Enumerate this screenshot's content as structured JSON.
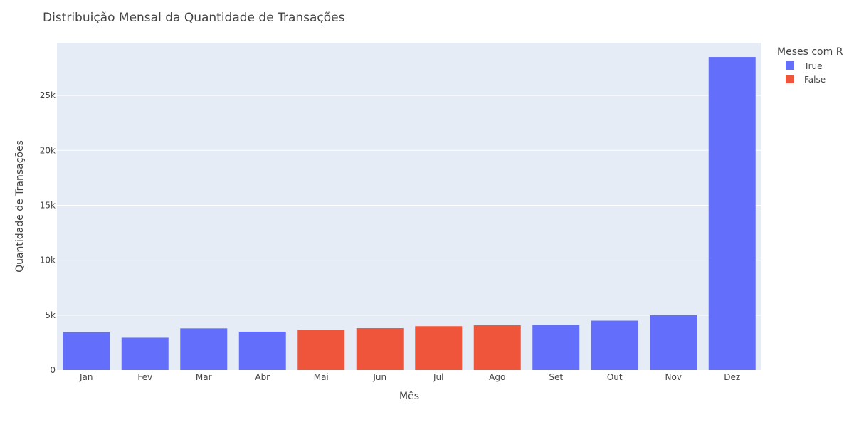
{
  "chart_data": {
    "type": "bar",
    "title": "Distribuição Mensal da Quantidade de Transações",
    "xlabel": "Mês",
    "ylabel": "Quantidade de Transações",
    "ylim": [
      0,
      29800
    ],
    "yticks": [
      0,
      5000,
      10000,
      15000,
      20000,
      25000
    ],
    "ytick_labels": [
      "0",
      "5k",
      "10k",
      "15k",
      "20k",
      "25k"
    ],
    "grid": true,
    "categories": [
      "Jan",
      "Fev",
      "Mar",
      "Abr",
      "Mai",
      "Jun",
      "Jul",
      "Ago",
      "Set",
      "Out",
      "Nov",
      "Dez"
    ],
    "values": [
      3450,
      2950,
      3800,
      3500,
      3650,
      3820,
      4000,
      4080,
      4120,
      4500,
      5000,
      28500
    ],
    "groups": [
      "True",
      "True",
      "True",
      "True",
      "False",
      "False",
      "False",
      "False",
      "True",
      "True",
      "True",
      "True"
    ],
    "legend": {
      "title": "Meses com R",
      "position": "top-right",
      "entries": [
        {
          "name": "True",
          "color": "#636efa"
        },
        {
          "name": "False",
          "color": "#ef553b"
        }
      ]
    },
    "colors": {
      "plot_bg": "#e5ecf6",
      "grid": "#ffffff",
      "text": "#444444"
    }
  }
}
